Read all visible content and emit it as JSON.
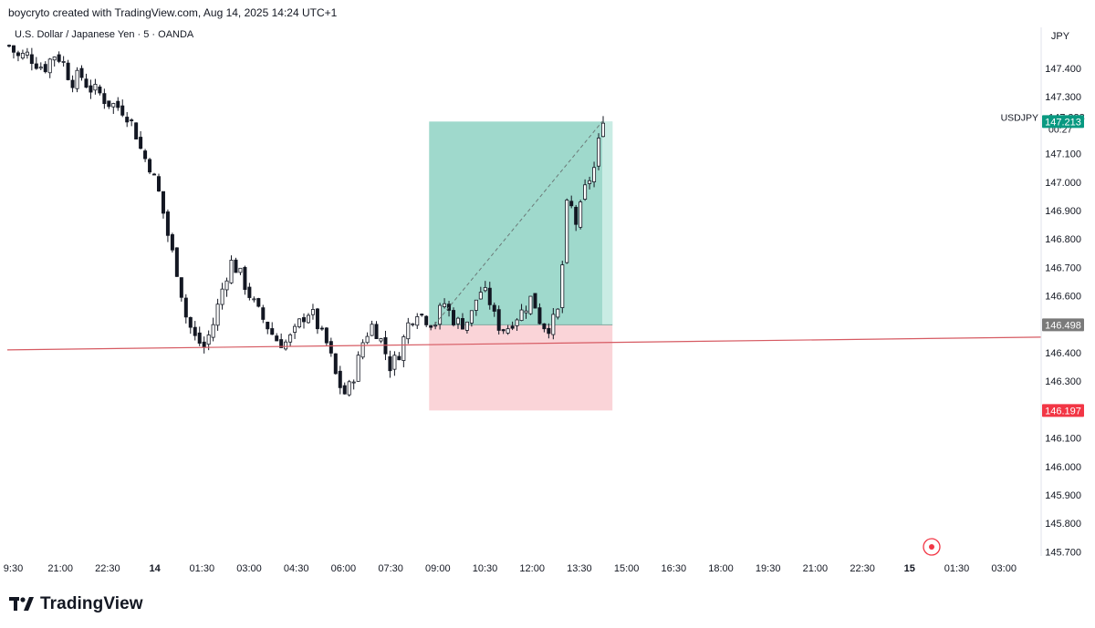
{
  "header": {
    "creator": "boycryto created with TradingView.com, Aug 14, 2025 14:24 UTC+1",
    "symbol_line": "U.S. Dollar / Japanese Yen · 5 · OANDA"
  },
  "footer": {
    "logo_text": "TradingView"
  },
  "colors": {
    "up": "#089981",
    "down": "#f23645",
    "candle": "#131722",
    "profit_zone": "#9fd9cc",
    "loss_zone": "#fad4d8",
    "trendline": "#d65a62",
    "entry_tag": "#7a7a7a",
    "current_tag": "#089981",
    "stop_tag": "#f23645"
  },
  "chart_data": {
    "type": "candlestick",
    "symbol": "USDJPY",
    "currency_label": "JPY",
    "ylim": [
      145.64,
      147.55
    ],
    "y_ticks": [
      "147.400",
      "147.300",
      "147.100",
      "147.000",
      "146.900",
      "146.800",
      "146.700",
      "146.600",
      "146.400",
      "146.300",
      "146.100",
      "146.000",
      "145.900",
      "145.800",
      "145.700"
    ],
    "x_ticks": [
      "9:30",
      "21:00",
      "22:30",
      "14",
      "01:30",
      "03:00",
      "04:30",
      "06:00",
      "07:30",
      "09:00",
      "10:30",
      "12:00",
      "13:30",
      "15:00",
      "16:30",
      "18:00",
      "19:30",
      "21:00",
      "22:30",
      "15",
      "01:30",
      "03:00"
    ],
    "last_price": "147.228",
    "countdown": "00:27",
    "price_tags": {
      "take_profit": "147.213",
      "entry": "146.498",
      "stop_loss": "146.197"
    },
    "position": {
      "side": "long",
      "start": "08:50",
      "end": "14:45",
      "entry": 146.498,
      "target": 147.213,
      "stop": 146.197
    },
    "trendline": {
      "start_price": 146.41,
      "end_price": 146.455
    },
    "close_path": [
      147.48,
      147.44,
      147.45,
      147.42,
      147.4,
      147.45,
      147.43,
      147.35,
      147.38,
      147.33,
      147.32,
      147.28,
      147.27,
      147.25,
      147.2,
      147.1,
      147.05,
      146.95,
      146.8,
      146.68,
      146.52,
      146.45,
      146.42,
      146.5,
      146.62,
      146.72,
      146.68,
      146.61,
      146.55,
      146.5,
      146.45,
      146.43,
      146.46,
      146.52,
      146.55,
      146.48,
      146.42,
      146.3,
      146.25,
      146.33,
      146.45,
      146.5,
      146.44,
      146.35,
      146.4,
      146.5,
      146.55,
      146.52,
      146.5,
      146.58,
      146.52,
      146.5,
      146.52,
      146.62,
      146.6,
      146.5,
      146.48,
      146.52,
      146.55,
      146.6,
      146.5,
      146.49,
      146.55,
      146.95,
      146.85,
      146.98,
      147.05,
      147.23
    ]
  }
}
